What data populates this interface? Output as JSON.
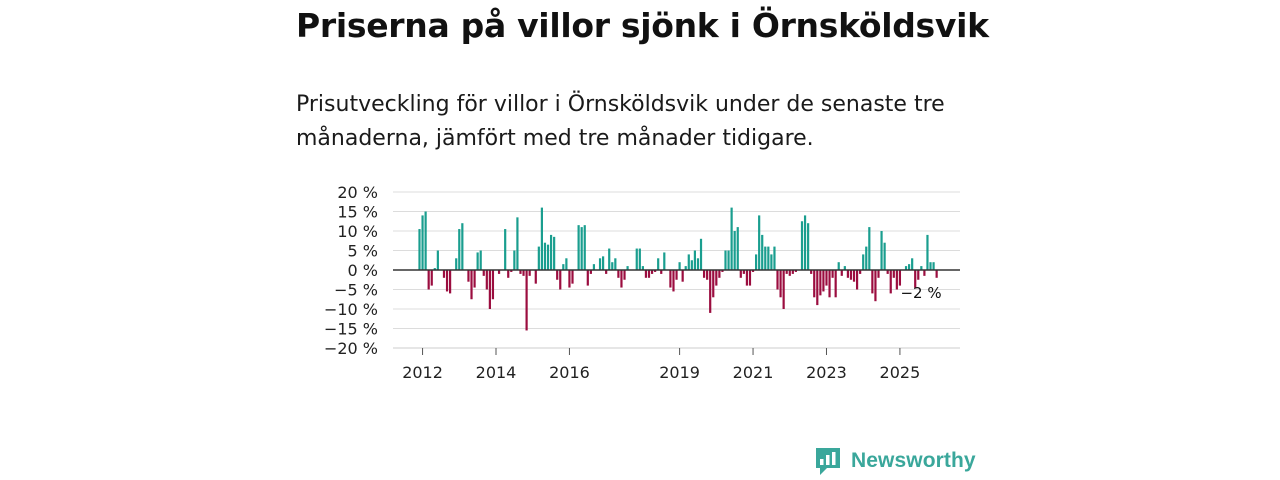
{
  "title": "Priserna på villor sjönk i Örnsköldsvik",
  "subtitle": "Prisutveckling för villor i Örnsköldsvik under de senaste tre månaderna, jämfört med tre månader tidigare.",
  "brand": {
    "name": "Newsworthy",
    "icon": "newsworthy-logo-icon",
    "color": "#3aa79b"
  },
  "chart_data": {
    "type": "bar",
    "title": "",
    "xlabel": "",
    "ylabel": "",
    "ylim": [
      -20,
      20
    ],
    "y_ticks": [
      20,
      15,
      10,
      5,
      0,
      -5,
      -10,
      -15,
      -20
    ],
    "y_tick_labels": [
      "20 %",
      "15 %",
      "10 %",
      "5 %",
      "0 %",
      "−5 %",
      "−10 %",
      "−15 %",
      "−20 %"
    ],
    "x_tick_labels": [
      {
        "label": "2012",
        "index": 1
      },
      {
        "label": "2014",
        "index": 25
      },
      {
        "label": "2016",
        "index": 49
      },
      {
        "label": "2019",
        "index": 85
      },
      {
        "label": "2021",
        "index": 109
      },
      {
        "label": "2023",
        "index": 133
      },
      {
        "label": "2025",
        "index": 157
      }
    ],
    "positive_color": "#1a9e8f",
    "negative_color": "#9b0d3f",
    "grid": true,
    "last_value_label": "−2 %",
    "series": [
      {
        "name": "Prisutveckling (%)",
        "start": "2012-01",
        "frequency": "monthly",
        "values": [
          10.5,
          14,
          15,
          -5,
          -4,
          0.5,
          5,
          0,
          -2,
          -5.5,
          -6,
          0,
          3,
          10.5,
          12,
          0,
          -3,
          -7.5,
          -4.5,
          4.5,
          5,
          -1.5,
          -5,
          -10,
          -7.5,
          0,
          -1,
          0,
          10.5,
          -2,
          -0.5,
          5,
          13.5,
          -1,
          -1.5,
          -15.5,
          -1.5,
          0,
          -3.5,
          6,
          16,
          7,
          6.5,
          9,
          8.5,
          -2.5,
          -5,
          1.5,
          3,
          -4.5,
          -3.5,
          0,
          11.5,
          11,
          11.5,
          -4,
          -1,
          1.5,
          0,
          3,
          3.5,
          -1,
          5.5,
          2,
          3,
          -2,
          -4.5,
          -2.5,
          1,
          0,
          0,
          5.5,
          5.5,
          1,
          -2,
          -2,
          -1,
          -0.5,
          3,
          -1,
          4.5,
          0,
          -4.5,
          -5.5,
          -2.5,
          2,
          -3,
          1,
          4,
          2.5,
          5,
          3,
          8,
          -2,
          -2.5,
          -11,
          -7,
          -4,
          -2,
          -0.5,
          5,
          5,
          16,
          10,
          11,
          -2,
          -1,
          -4,
          -4,
          -0.5,
          4,
          14,
          9,
          6,
          6,
          4,
          6,
          -5,
          -7,
          -10,
          -1,
          -1.5,
          -1,
          -0.5,
          0,
          12.5,
          14,
          12,
          -1,
          -7,
          -9,
          -6.5,
          -5.5,
          -4,
          -7,
          -2,
          -7,
          2,
          -1.5,
          1,
          -2,
          -2.5,
          -3,
          -5,
          -1,
          4,
          6,
          11,
          -6,
          -8,
          -2,
          10,
          7,
          -1,
          -6,
          -2,
          -5,
          -4,
          0,
          1,
          1.5,
          3,
          -4.5,
          -2.5,
          1,
          -1.5,
          9,
          2,
          2,
          -2
        ]
      }
    ]
  }
}
